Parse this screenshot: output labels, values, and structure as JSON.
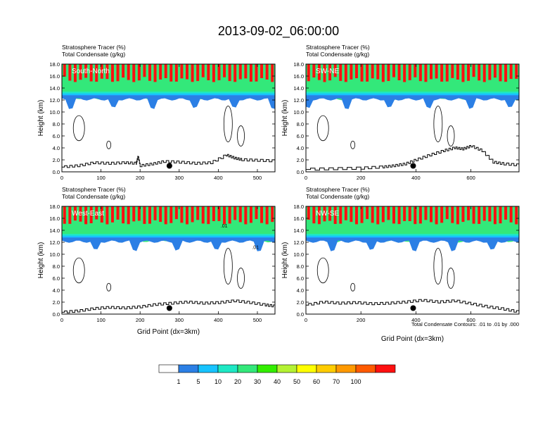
{
  "figure": {
    "title": "2013-09-02_06:00:00",
    "contour_note": "Total Condensate Contours: .01 to .01 by .000"
  },
  "colorbar": {
    "colors": [
      "#ffffff",
      "#2b7fe5",
      "#17c3ff",
      "#1ee8c4",
      "#33e87a",
      "#33ee00",
      "#b4f233",
      "#ffff00",
      "#ffcc00",
      "#ff9900",
      "#ff5a00",
      "#ff1010"
    ],
    "labels": [
      "1",
      "5",
      "10",
      "20",
      "30",
      "40",
      "50",
      "60",
      "70",
      "100"
    ]
  },
  "chart_data": [
    {
      "type": "contour",
      "panel": "South-North",
      "title": "South-North",
      "line1": "Stratosphere Tracer   (%)",
      "line2": "Total Condensate   (g/kg)",
      "ylabel": "Height (km)",
      "xlabel": "",
      "xlim": [
        0,
        545
      ],
      "ylim": [
        0,
        18
      ],
      "xticks": [
        "0",
        "100",
        "200",
        "300",
        "400",
        "500"
      ],
      "yticks": [
        "0.0",
        "2.0",
        "4.0",
        "6.0",
        "8.0",
        "10.0",
        "12.0",
        "14.0",
        "16.0",
        "18.0"
      ],
      "marker": {
        "x": 275,
        "y": 1.0
      },
      "terrain": [
        [
          0,
          0.8
        ],
        [
          40,
          1.0
        ],
        [
          80,
          1.5
        ],
        [
          120,
          1.4
        ],
        [
          160,
          1.5
        ],
        [
          190,
          1.4
        ],
        [
          195,
          2.6
        ],
        [
          200,
          1.0
        ],
        [
          230,
          1.3
        ],
        [
          260,
          1.7
        ],
        [
          300,
          1.6
        ],
        [
          340,
          1.4
        ],
        [
          380,
          1.5
        ],
        [
          420,
          2.8
        ],
        [
          440,
          2.3
        ],
        [
          460,
          2.0
        ],
        [
          500,
          1.9
        ],
        [
          545,
          1.8
        ]
      ]
    },
    {
      "type": "contour",
      "panel": "SW-NE",
      "title": "SW-NE",
      "line1": "Stratosphere Tracer   (%)",
      "line2": "Total Condensate   (g/kg)",
      "ylabel": "Height (km)",
      "xlabel": "",
      "xlim": [
        0,
        775
      ],
      "ylim": [
        0,
        18
      ],
      "xticks": [
        "0",
        "200",
        "400",
        "600"
      ],
      "yticks": [
        "0.0",
        "2.0",
        "4.0",
        "6.0",
        "8.0",
        "10.0",
        "12.0",
        "14.0",
        "16.0",
        "18.0"
      ],
      "marker": {
        "x": 390,
        "y": 1.0
      },
      "terrain": [
        [
          0,
          0.4
        ],
        [
          100,
          0.5
        ],
        [
          200,
          0.6
        ],
        [
          280,
          0.8
        ],
        [
          320,
          1.0
        ],
        [
          360,
          1.3
        ],
        [
          400,
          2.0
        ],
        [
          450,
          2.8
        ],
        [
          500,
          3.5
        ],
        [
          540,
          4.0
        ],
        [
          570,
          3.8
        ],
        [
          600,
          4.3
        ],
        [
          640,
          3.5
        ],
        [
          680,
          1.6
        ],
        [
          720,
          1.3
        ],
        [
          775,
          1.1
        ]
      ]
    },
    {
      "type": "contour",
      "panel": "West-East",
      "title": "West-East",
      "line1": "Stratosphere Tracer   (%)",
      "line2": "Total Condensate   (g/kg)",
      "ylabel": "Height (km)",
      "xlabel": "Grid Point (dx=3km)",
      "xlim": [
        0,
        545
      ],
      "ylim": [
        0,
        18
      ],
      "xticks": [
        "0",
        "100",
        "200",
        "300",
        "400",
        "500"
      ],
      "yticks": [
        "0.0",
        "2.0",
        "4.0",
        "6.0",
        "8.0",
        "10.0",
        "12.0",
        "14.0",
        "16.0",
        "18.0"
      ],
      "marker": {
        "x": 275,
        "y": 1.0
      },
      "contour_labels": [
        {
          "text": ".01",
          "x": 415,
          "y": 14.5
        },
        {
          "text": ".01",
          "x": 495,
          "y": 10.9
        }
      ],
      "terrain": [
        [
          0,
          0.3
        ],
        [
          40,
          0.5
        ],
        [
          80,
          0.9
        ],
        [
          120,
          1.1
        ],
        [
          160,
          1.0
        ],
        [
          200,
          1.2
        ],
        [
          240,
          1.6
        ],
        [
          280,
          1.8
        ],
        [
          320,
          2.0
        ],
        [
          360,
          1.8
        ],
        [
          400,
          1.9
        ],
        [
          440,
          2.2
        ],
        [
          480,
          1.9
        ],
        [
          520,
          1.5
        ],
        [
          545,
          1.3
        ]
      ]
    },
    {
      "type": "contour",
      "panel": "NW-SE",
      "title": "NW-SE",
      "line1": "Stratosphere Tracer   (%)",
      "line2": "Total Condensate   (g/kg)",
      "ylabel": "Height (km)",
      "xlabel": "Grid Point (dx=3km)",
      "xlim": [
        0,
        775
      ],
      "ylim": [
        0,
        18
      ],
      "xticks": [
        "0",
        "200",
        "400",
        "600"
      ],
      "yticks": [
        "0.0",
        "2.0",
        "4.0",
        "6.0",
        "8.0",
        "10.0",
        "12.0",
        "14.0",
        "16.0",
        "18.0"
      ],
      "marker": {
        "x": 390,
        "y": 1.0
      },
      "terrain": [
        [
          0,
          1.5
        ],
        [
          60,
          2.0
        ],
        [
          120,
          1.8
        ],
        [
          180,
          1.9
        ],
        [
          240,
          1.7
        ],
        [
          300,
          1.8
        ],
        [
          360,
          2.0
        ],
        [
          420,
          2.3
        ],
        [
          480,
          2.0
        ],
        [
          540,
          2.2
        ],
        [
          600,
          1.7
        ],
        [
          660,
          1.2
        ],
        [
          720,
          0.8
        ],
        [
          775,
          0.3
        ]
      ]
    }
  ]
}
